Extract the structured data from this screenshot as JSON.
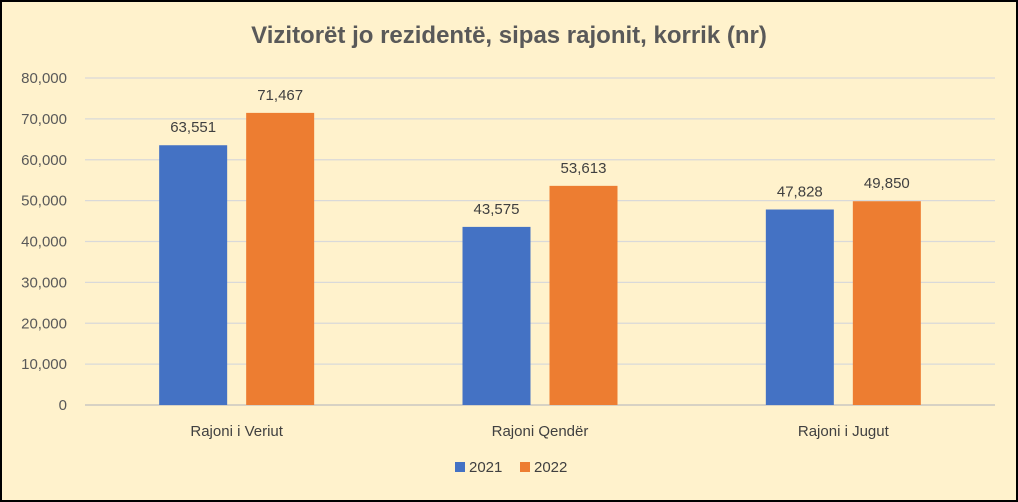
{
  "chart_data": {
    "type": "bar",
    "title": "Vizitorët jo rezidentë, sipas rajonit,  korrik (nr)",
    "xlabel": "",
    "ylabel": "",
    "categories": [
      "Rajoni i Veriut",
      "Rajoni Qendër",
      "Rajoni i Jugut"
    ],
    "series": [
      {
        "name": "2021",
        "values": [
          63551,
          43575,
          47828
        ],
        "labels": [
          "63,551",
          "43,575",
          "47,828"
        ],
        "color": "#4472C4"
      },
      {
        "name": "2022",
        "values": [
          71467,
          53613,
          49850
        ],
        "labels": [
          "71,467",
          "53,613",
          "49,850"
        ],
        "color": "#ED7D31"
      }
    ],
    "ylim": [
      0,
      80000
    ],
    "yticks": [
      0,
      10000,
      20000,
      30000,
      40000,
      50000,
      60000,
      70000,
      80000
    ],
    "ytick_labels": [
      "0",
      "10,000",
      "20,000",
      "30,000",
      "40,000",
      "50,000",
      "60,000",
      "70,000",
      "80,000"
    ],
    "grid": true,
    "legend": "bottom",
    "background": "#FFF2CC"
  }
}
